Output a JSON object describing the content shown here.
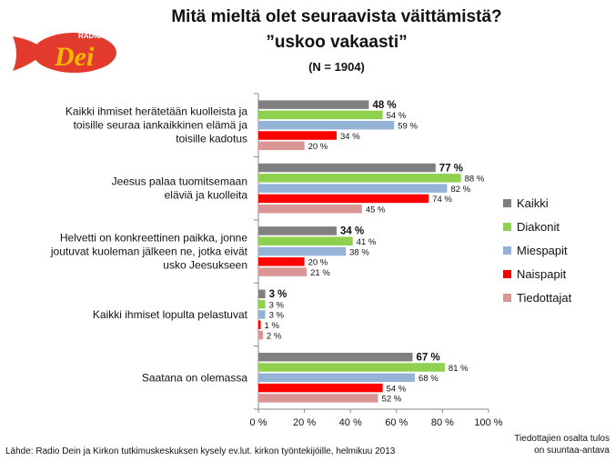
{
  "header": {
    "title": "Mitä mieltä olet seuraavista väittämistä?",
    "subtitle": "”uskoo vakaasti”",
    "sample": "(N = 1904)"
  },
  "logo": {
    "radio": "RADIO",
    "name": "Dei"
  },
  "source": "Lähde: Radio Dein ja Kirkon tutkimuskeskuksen kysely ev.lut. kirkon työntekijöille, helmikuu 2013",
  "note": [
    "Tiedottajien osalta tulos",
    "on suuntaa-antava"
  ],
  "colors": {
    "Kaikki": "#808080",
    "Diakonit": "#8fd14f",
    "Miespapit": "#95b3d7",
    "Naispapit": "#ff0000",
    "Tiedottajat": "#d99694"
  },
  "chart_data": {
    "type": "bar",
    "orientation": "horizontal",
    "categories": [
      [
        "Kaikki ihmiset herätetään kuolleista ja",
        "toisille seuraa iankaikkinen elämä ja",
        "toisille kadotus"
      ],
      [
        "Jeesus palaa tuomitsemaan",
        "eläviä ja kuolleita"
      ],
      [
        "Helvetti on konkreettinen paikka, jonne",
        "joutuvat kuoleman jälkeen ne, jotka eivät",
        "usko Jeesukseen"
      ],
      [
        "Kaikki ihmiset lopulta pelastuvat"
      ],
      [
        "Saatana on olemassa"
      ]
    ],
    "series": [
      {
        "name": "Kaikki",
        "values": [
          48,
          77,
          34,
          3,
          67
        ]
      },
      {
        "name": "Diakonit",
        "values": [
          54,
          88,
          41,
          3,
          81
        ]
      },
      {
        "name": "Miespapit",
        "values": [
          59,
          82,
          38,
          3,
          68
        ]
      },
      {
        "name": "Naispapit",
        "values": [
          34,
          74,
          20,
          1,
          54
        ]
      },
      {
        "name": "Tiedottajat",
        "values": [
          20,
          45,
          21,
          2,
          52
        ]
      }
    ],
    "xlim": [
      0,
      100
    ],
    "xticks": [
      "0 %",
      "20 %",
      "40 %",
      "60 %",
      "80 %",
      "100 %"
    ],
    "value_suffix": " %",
    "legend": "right",
    "grid": false
  }
}
